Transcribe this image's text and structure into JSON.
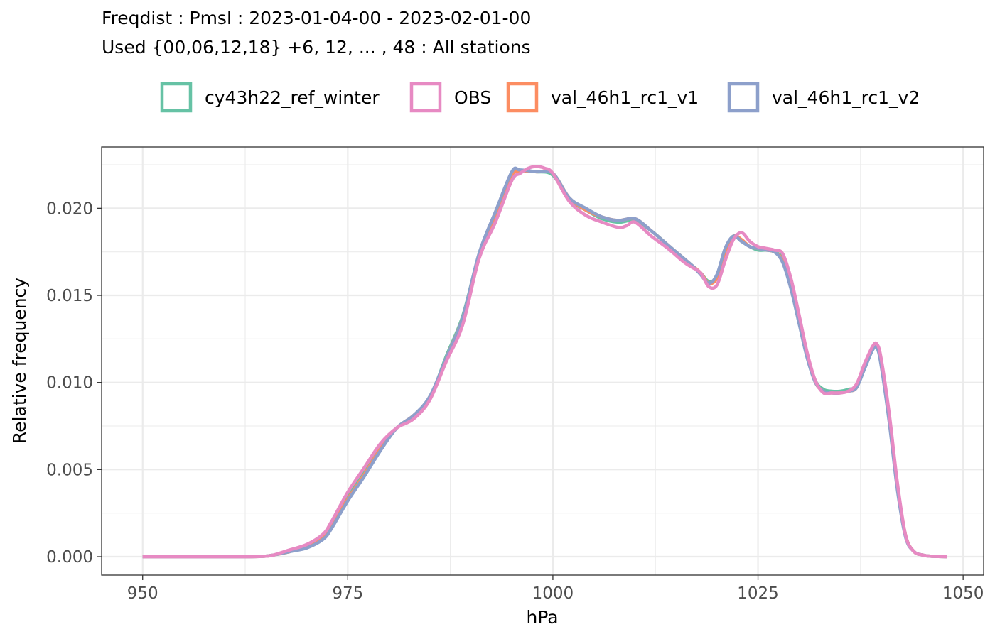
{
  "chart_data": {
    "type": "line",
    "title": "Freqdist : Pmsl : 2023-01-04-00 - 2023-02-01-00",
    "subtitle": "Used {00,06,12,18} +6, 12, ... , 48 : All stations",
    "xlabel": "hPa",
    "ylabel": "Relative frequency",
    "xlim": [
      945,
      1052.5
    ],
    "ylim": [
      -0.00106,
      0.02352
    ],
    "xticks": [
      950,
      975,
      1000,
      1025,
      1050
    ],
    "xtick_labels": [
      "950",
      "975",
      "1000",
      "1025",
      "1050"
    ],
    "yticks": [
      0.0,
      0.005,
      0.01,
      0.015,
      0.02
    ],
    "ytick_labels": [
      "0.000",
      "0.005",
      "0.010",
      "0.015",
      "0.020"
    ],
    "grid": true,
    "legend_position": "top",
    "colors": {
      "cy43h22_ref_winter": "#66c2a5",
      "OBS": "#e78ac3",
      "val_46h1_rc1_v1": "#fc8d62",
      "val_46h1_rc1_v2": "#8da0cb"
    },
    "series": [
      {
        "name": "cy43h22_ref_winter",
        "x": [
          950,
          955,
          960,
          963,
          965,
          966,
          968,
          970,
          972,
          973,
          975,
          977,
          979,
          981,
          983,
          985,
          987,
          989,
          991,
          993,
          995,
          996,
          998,
          1000,
          1002,
          1004,
          1006,
          1008,
          1010,
          1012,
          1014,
          1016,
          1017,
          1018,
          1019,
          1020,
          1021,
          1022,
          1023,
          1024,
          1025,
          1026,
          1027,
          1028,
          1029,
          1030,
          1031,
          1032,
          1033,
          1034,
          1035,
          1036,
          1037,
          1038,
          1039,
          1039.5,
          1040,
          1041,
          1042,
          1043,
          1044,
          1045,
          1046,
          1048
        ],
        "y": [
          0,
          0,
          0,
          0,
          3e-05,
          0.0001,
          0.0003,
          0.0006,
          0.0011,
          0.0018,
          0.0034,
          0.0048,
          0.0063,
          0.0074,
          0.008,
          0.0091,
          0.0115,
          0.0138,
          0.0173,
          0.0195,
          0.0219,
          0.0221,
          0.0221,
          0.0219,
          0.0205,
          0.0199,
          0.0194,
          0.0192,
          0.0193,
          0.0187,
          0.0179,
          0.0171,
          0.0167,
          0.0163,
          0.0158,
          0.0161,
          0.0176,
          0.0184,
          0.0181,
          0.0178,
          0.0176,
          0.0176,
          0.0175,
          0.0171,
          0.0156,
          0.0136,
          0.0116,
          0.0101,
          0.0096,
          0.0095,
          0.0095,
          0.0096,
          0.0098,
          0.0109,
          0.0119,
          0.012,
          0.0111,
          0.0079,
          0.004,
          0.0012,
          0.0003,
          0.0001,
          3e-05,
          0
        ]
      },
      {
        "name": "val_46h1_rc1_v1",
        "x": [
          950,
          955,
          960,
          963,
          965,
          966,
          968,
          970,
          972,
          973,
          975,
          977,
          979,
          981,
          983,
          985,
          987,
          989,
          991,
          993,
          995,
          996,
          998,
          1000,
          1002,
          1004,
          1006,
          1008,
          1010,
          1012,
          1014,
          1016,
          1017,
          1018,
          1019,
          1020,
          1021,
          1022,
          1023,
          1024,
          1025,
          1026,
          1027,
          1028,
          1029,
          1030,
          1031,
          1032,
          1033,
          1034,
          1035,
          1036,
          1037,
          1038,
          1039,
          1039.5,
          1040,
          1041,
          1042,
          1043,
          1044,
          1045,
          1046,
          1048
        ],
        "y": [
          0,
          0,
          0,
          0,
          3e-05,
          0.0001,
          0.0003,
          0.0006,
          0.0011,
          0.0018,
          0.0033,
          0.0047,
          0.0062,
          0.0074,
          0.0081,
          0.0091,
          0.0114,
          0.0137,
          0.0172,
          0.0196,
          0.0219,
          0.0221,
          0.0221,
          0.022,
          0.0206,
          0.0199,
          0.0195,
          0.0193,
          0.0194,
          0.0187,
          0.0179,
          0.0171,
          0.0167,
          0.0163,
          0.0157,
          0.016,
          0.0175,
          0.0184,
          0.0182,
          0.0178,
          0.0177,
          0.0176,
          0.0175,
          0.017,
          0.0155,
          0.0135,
          0.0115,
          0.01,
          0.0095,
          0.0094,
          0.0094,
          0.0095,
          0.0097,
          0.0109,
          0.012,
          0.0121,
          0.0112,
          0.008,
          0.0041,
          0.0012,
          0.0003,
          0.0001,
          3e-05,
          0
        ]
      },
      {
        "name": "val_46h1_rc1_v2",
        "x": [
          950,
          955,
          960,
          963,
          965,
          966,
          968,
          970,
          972,
          973,
          975,
          977,
          979,
          981,
          983,
          985,
          987,
          989,
          991,
          993,
          995,
          996,
          998,
          1000,
          1002,
          1004,
          1006,
          1008,
          1010,
          1012,
          1014,
          1016,
          1017,
          1018,
          1019,
          1020,
          1021,
          1022,
          1023,
          1024,
          1025,
          1026,
          1027,
          1028,
          1029,
          1030,
          1031,
          1032,
          1033,
          1034,
          1035,
          1036,
          1037,
          1038,
          1039,
          1039.5,
          1040,
          1041,
          1042,
          1043,
          1044,
          1045,
          1046,
          1048
        ],
        "y": [
          0,
          0,
          0,
          0,
          3e-05,
          0.0001,
          0.0003,
          0.0005,
          0.001,
          0.0016,
          0.0032,
          0.0046,
          0.0061,
          0.0074,
          0.0081,
          0.0092,
          0.0114,
          0.0137,
          0.0174,
          0.0198,
          0.0221,
          0.0222,
          0.0221,
          0.022,
          0.0206,
          0.02,
          0.0195,
          0.0193,
          0.0194,
          0.0187,
          0.0179,
          0.0171,
          0.0167,
          0.0162,
          0.0157,
          0.0162,
          0.0177,
          0.0184,
          0.0181,
          0.0178,
          0.0177,
          0.0176,
          0.0175,
          0.0169,
          0.0154,
          0.0134,
          0.0114,
          0.01,
          0.0095,
          0.0094,
          0.0094,
          0.0095,
          0.0097,
          0.0108,
          0.0119,
          0.012,
          0.011,
          0.0077,
          0.0038,
          0.0011,
          0.0003,
          0.0001,
          3e-05,
          0
        ]
      },
      {
        "name": "OBS",
        "x": [
          950,
          955,
          960,
          963,
          965,
          966,
          968,
          970,
          972,
          973,
          975,
          977,
          979,
          981,
          983,
          985,
          987,
          989,
          991,
          993,
          995,
          996,
          997,
          998,
          999,
          1000,
          1002,
          1004,
          1006,
          1008,
          1009,
          1010,
          1012,
          1014,
          1016,
          1017,
          1018,
          1019,
          1020,
          1021,
          1022,
          1023,
          1024,
          1025,
          1026,
          1027,
          1028,
          1029,
          1030,
          1031,
          1032,
          1033,
          1034,
          1035,
          1036,
          1037,
          1038,
          1039,
          1039.5,
          1040,
          1041,
          1042,
          1043,
          1044,
          1045,
          1046,
          1048
        ],
        "y": [
          0,
          0,
          0,
          0,
          3e-05,
          0.0001,
          0.0004,
          0.0007,
          0.0013,
          0.002,
          0.0037,
          0.0051,
          0.0065,
          0.0074,
          0.0079,
          0.009,
          0.0112,
          0.0133,
          0.0171,
          0.0192,
          0.0216,
          0.022,
          0.0223,
          0.0224,
          0.0223,
          0.022,
          0.0204,
          0.0196,
          0.0192,
          0.0189,
          0.019,
          0.0192,
          0.0184,
          0.0177,
          0.0169,
          0.0166,
          0.0163,
          0.0155,
          0.0156,
          0.017,
          0.0182,
          0.0186,
          0.0181,
          0.0178,
          0.0177,
          0.0176,
          0.0174,
          0.016,
          0.0139,
          0.0117,
          0.0101,
          0.0094,
          0.0094,
          0.0094,
          0.0095,
          0.0099,
          0.0111,
          0.0121,
          0.0122,
          0.0114,
          0.0082,
          0.0042,
          0.0012,
          0.0003,
          0.0001,
          3e-05,
          0
        ]
      }
    ],
    "legend_order": [
      "cy43h22_ref_winter",
      "OBS",
      "val_46h1_rc1_v1",
      "val_46h1_rc1_v2"
    ]
  }
}
